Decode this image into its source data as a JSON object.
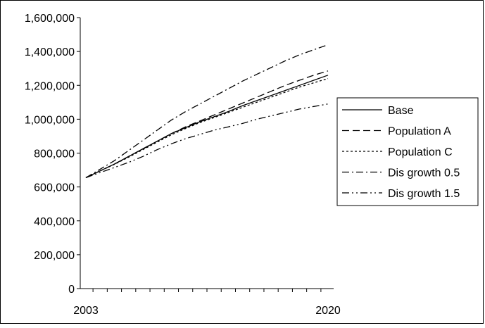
{
  "chart_data": {
    "type": "line",
    "x": [
      2003,
      2004,
      2005,
      2006,
      2007,
      2008,
      2009,
      2010,
      2011,
      2012,
      2013,
      2014,
      2015,
      2016,
      2017,
      2018,
      2019,
      2020
    ],
    "x_tick_labels": [
      "2003",
      "2020"
    ],
    "ylim": [
      0,
      1600000
    ],
    "y_ticks": [
      "0",
      "200,000",
      "400,000",
      "600,000",
      "800,000",
      "1,000,000",
      "1,200,000",
      "1,400,000",
      "1,600,000"
    ],
    "grid": false,
    "legend_position": "right",
    "series": [
      {
        "name": "Base",
        "dash": "",
        "values": [
          655000,
          695000,
          735000,
          780000,
          825000,
          870000,
          915000,
          950000,
          985000,
          1015000,
          1045000,
          1080000,
          1110000,
          1140000,
          1170000,
          1200000,
          1230000,
          1260000
        ]
      },
      {
        "name": "Population A",
        "dash": "10 5",
        "values": [
          655000,
          695000,
          735000,
          780000,
          825000,
          870000,
          915000,
          955000,
          990000,
          1025000,
          1060000,
          1095000,
          1130000,
          1165000,
          1200000,
          1230000,
          1260000,
          1285000
        ]
      },
      {
        "name": "Population C",
        "dash": "3 3",
        "values": [
          655000,
          695000,
          733000,
          776000,
          820000,
          865000,
          908000,
          945000,
          980000,
          1010000,
          1040000,
          1070000,
          1100000,
          1130000,
          1160000,
          1190000,
          1215000,
          1240000
        ]
      },
      {
        "name": "Dis growth 0.5",
        "dash": "10 4 2 4",
        "values": [
          655000,
          705000,
          755000,
          815000,
          875000,
          935000,
          995000,
          1045000,
          1090000,
          1135000,
          1180000,
          1225000,
          1265000,
          1305000,
          1345000,
          1380000,
          1410000,
          1440000
        ]
      },
      {
        "name": "Dis growth 1.5",
        "dash": "10 4 2 4 2 4",
        "values": [
          655000,
          685000,
          715000,
          745000,
          780000,
          820000,
          855000,
          885000,
          910000,
          935000,
          955000,
          975000,
          1000000,
          1020000,
          1040000,
          1060000,
          1075000,
          1090000
        ]
      }
    ]
  }
}
